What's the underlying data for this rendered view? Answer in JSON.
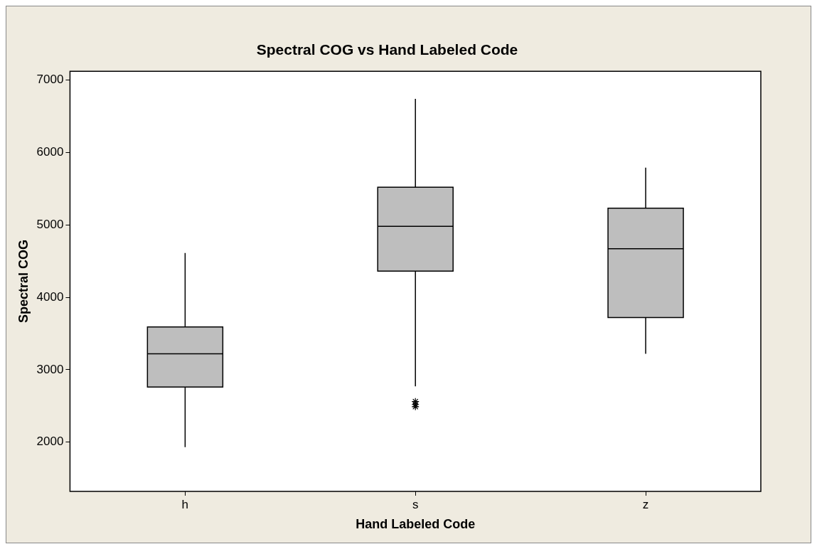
{
  "chart_data": {
    "type": "box",
    "title": "Spectral COG vs Hand Labeled Code",
    "xlabel": "Hand Labeled Code",
    "ylabel": "Spectral COG",
    "categories": [
      "h",
      "s",
      "z"
    ],
    "boxes": [
      {
        "low": 1930,
        "q1": 2760,
        "median": 3220,
        "q3": 3590,
        "high": 4610
      },
      {
        "low": 2770,
        "q1": 4360,
        "median": 4980,
        "q3": 5520,
        "high": 6740,
        "outliers": [
          2560,
          2520,
          2490
        ]
      },
      {
        "low": 3220,
        "q1": 3720,
        "median": 4670,
        "q3": 5230,
        "high": 5790
      }
    ],
    "color": "#bebebe",
    "marker": "star",
    "ylim": [
      1320,
      7120
    ],
    "yticks": [
      2000,
      3000,
      4000,
      5000,
      6000,
      7000
    ],
    "grid": false,
    "legend": false
  }
}
